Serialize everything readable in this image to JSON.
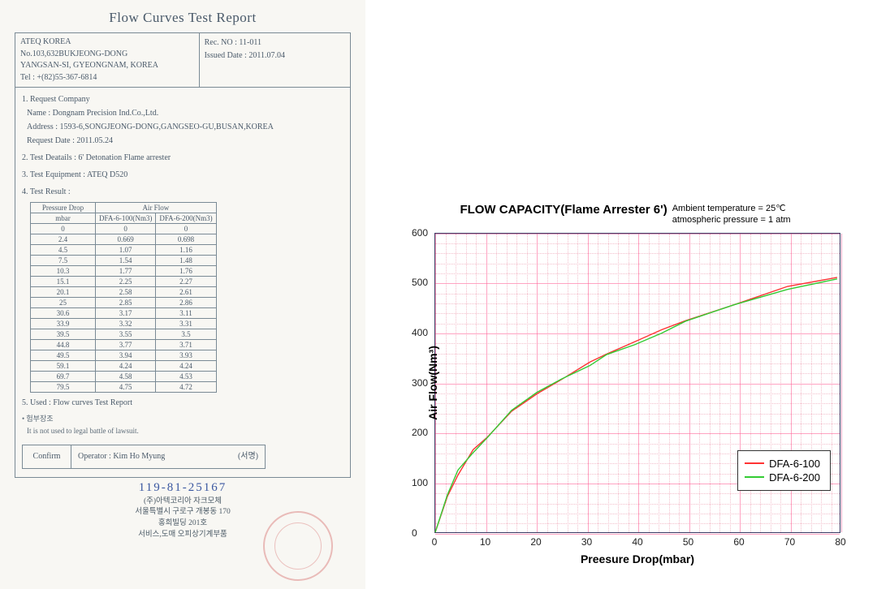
{
  "doc": {
    "title": "Flow Curves Test Report",
    "company_lines": [
      "ATEQ KOREA",
      "No.103,632BUKJEONG-DONG",
      "YANGSAN-SI, GYEONGNAM, KOREA",
      "Tel : +(82)55-367-6814"
    ],
    "rec_no_label": "Rec. NO : ",
    "rec_no": "11-011",
    "issued_label": "Issued Date : ",
    "issued_date": "2011.07.04",
    "sec1_title": "1. Request Company",
    "req_name": "Name : Dongnam Precision Ind.Co.,Ltd.",
    "req_addr": "Address : 1593-6,SONGJEONG-DONG,GANGSEO-GU,BUSAN,KOREA",
    "req_date": "Request Date : 2011.05.24",
    "sec2": "2. Test Deatails : 6' Detonation Flame arrester",
    "sec3": "3. Test Equipment : ATEQ D520",
    "sec4": "4. Test Result :",
    "table": {
      "h_press": "Pressure Drop",
      "h_unit": "mbar",
      "h_air": "Air Flow",
      "h_s1": "DFA-6-100(Nm3)",
      "h_s2": "DFA-6-200(Nm3)",
      "rows": [
        [
          "0",
          "0",
          "0"
        ],
        [
          "2.4",
          "0.669",
          "0.698"
        ],
        [
          "4.5",
          "1.07",
          "1.16"
        ],
        [
          "7.5",
          "1.54",
          "1.48"
        ],
        [
          "10.3",
          "1.77",
          "1.76"
        ],
        [
          "15.1",
          "2.25",
          "2.27"
        ],
        [
          "20.1",
          "2.58",
          "2.61"
        ],
        [
          "25",
          "2.85",
          "2.86"
        ],
        [
          "30.6",
          "3.17",
          "3.11"
        ],
        [
          "33.9",
          "3.32",
          "3.31"
        ],
        [
          "39.5",
          "3.55",
          "3.5"
        ],
        [
          "44.8",
          "3.77",
          "3.71"
        ],
        [
          "49.5",
          "3.94",
          "3.93"
        ],
        [
          "59.1",
          "4.24",
          "4.24"
        ],
        [
          "69.7",
          "4.58",
          "4.53"
        ],
        [
          "79.5",
          "4.75",
          "4.72"
        ]
      ]
    },
    "sec5": "5. Used : Flow curves Test Report",
    "caution_title": "• 험부장조",
    "caution_body": "It is not used to legal battle of lawsuit.",
    "confirm_label": "Confirm",
    "confirm_body_left": "Operator : Kim Ho Myung",
    "confirm_body_right": "(서명)",
    "biznum": "119-81-25167",
    "kr_footer": [
      "(주)아텍코리아    자크모체",
      "서울특별시 구로구 개봉동 170",
      "홍희빌딩 201호",
      "서비스,도매    오피상기계부품"
    ]
  },
  "chart": {
    "title": "FLOW CAPACITY(Flame Arrester 6')",
    "sub1": "Ambient temperature = 25℃",
    "sub2": "atmospheric pressure = 1 atm",
    "xlabel": "Preesure Drop(mbar)",
    "ylabel": "Air Flow(Nm³)",
    "xlim": [
      0,
      80
    ],
    "ylim": [
      0,
      600
    ],
    "xtick_step": 10,
    "ytick_step": 100,
    "xminor_step": 2,
    "yminor_step": 20,
    "grid_major_color": "#ff6699",
    "grid_minor_color": "#f2b3c2",
    "border_color": "#3a3a64",
    "background": "#ffffff",
    "series": [
      {
        "name": "DFA-6-100",
        "color": "#ff3333",
        "width": 1.4,
        "points": [
          [
            0,
            0
          ],
          [
            2.4,
            72
          ],
          [
            4.5,
            115
          ],
          [
            7.5,
            166
          ],
          [
            10.3,
            191
          ],
          [
            15.1,
            243
          ],
          [
            20.1,
            278
          ],
          [
            25,
            307
          ],
          [
            30.6,
            342
          ],
          [
            33.9,
            358
          ],
          [
            39.5,
            383
          ],
          [
            44.8,
            407
          ],
          [
            49.5,
            425
          ],
          [
            59.1,
            457
          ],
          [
            69.7,
            494
          ],
          [
            79.5,
            512
          ]
        ]
      },
      {
        "name": "DFA-6-200",
        "color": "#33cc33",
        "width": 1.4,
        "points": [
          [
            0,
            0
          ],
          [
            2.4,
            75
          ],
          [
            4.5,
            125
          ],
          [
            7.5,
            160
          ],
          [
            10.3,
            190
          ],
          [
            15.1,
            245
          ],
          [
            20.1,
            281
          ],
          [
            25,
            308
          ],
          [
            30.6,
            335
          ],
          [
            33.9,
            357
          ],
          [
            39.5,
            377
          ],
          [
            44.8,
            400
          ],
          [
            49.5,
            424
          ],
          [
            59.1,
            457
          ],
          [
            69.7,
            488
          ],
          [
            79.5,
            509
          ]
        ]
      }
    ],
    "legend_labels": [
      "DFA-6-100",
      "DFA-6-200"
    ]
  }
}
